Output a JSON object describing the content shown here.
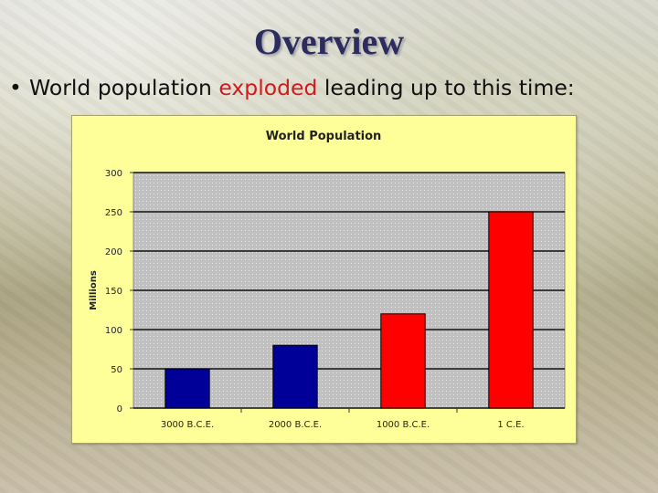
{
  "slide": {
    "title": "Overview",
    "bullet": {
      "marker": "•",
      "before": "World population ",
      "emphasis": "exploded",
      "after": " leading up to this time:",
      "emphasis_color": "#d11a1a"
    }
  },
  "chart_data": {
    "type": "bar",
    "title": "World Population",
    "xlabel": "",
    "ylabel": "Millions",
    "categories": [
      "3000 B.C.E.",
      "2000 B.C.E.",
      "1000 B.C.E.",
      "1 C.E."
    ],
    "values": [
      50,
      80,
      120,
      250
    ],
    "bar_colors": [
      "#000099",
      "#000099",
      "#ff0000",
      "#ff0000"
    ],
    "ylim": [
      0,
      300
    ],
    "yticks": [
      0,
      50,
      100,
      150,
      200,
      250,
      300
    ],
    "grid": true,
    "plot_background": "#c0c0c0",
    "chart_background": "#ffff99",
    "legend": "none"
  }
}
